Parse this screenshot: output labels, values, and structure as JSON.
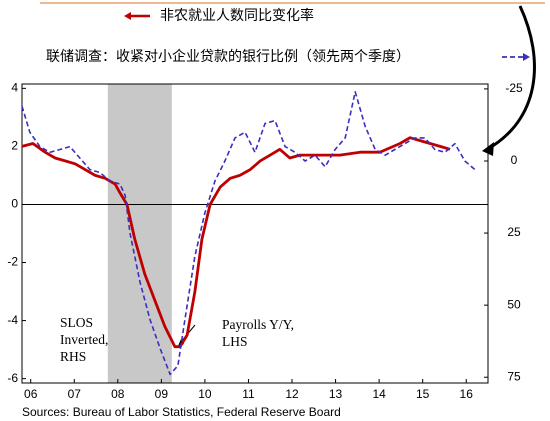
{
  "chart_data": {
    "type": "line",
    "legend": [
      "非农就业人数同比变化率",
      "联储调查：收紧对小企业贷款的银行比例（领先两个季度）"
    ],
    "series": [
      {
        "name": "非农就业人数同比变化率",
        "color": "#c00000",
        "axis": "y",
        "x": [
          5.8,
          6.05,
          6.33,
          6.56,
          6.79,
          7.02,
          7.25,
          7.48,
          7.71,
          7.94,
          8.05,
          8.21,
          8.39,
          8.62,
          8.85,
          9.08,
          9.31,
          9.43,
          9.59,
          9.77,
          9.93,
          10.12,
          10.35,
          10.58,
          10.8,
          11.04,
          11.27,
          11.5,
          11.72,
          11.95,
          12.18,
          12.64,
          13.1,
          13.56,
          14.02,
          14.48,
          14.71,
          14.94,
          15.17,
          15.4,
          15.63
        ],
        "values": [
          2.0,
          2.1,
          1.8,
          1.6,
          1.5,
          1.4,
          1.2,
          1.0,
          0.9,
          0.7,
          0.4,
          0.0,
          -1.2,
          -2.4,
          -3.3,
          -4.2,
          -4.9,
          -4.9,
          -4.5,
          -3.0,
          -1.2,
          0.0,
          0.6,
          0.9,
          1.0,
          1.2,
          1.5,
          1.7,
          1.9,
          1.6,
          1.7,
          1.7,
          1.7,
          1.8,
          1.8,
          2.1,
          2.3,
          2.2,
          2.1,
          2.0,
          1.9
        ]
      },
      {
        "name": "联储调查：收紧对小企业贷款的银行比例（领先两个季度）",
        "color": "#3a2fc0",
        "axis": "y2",
        "dashed": true,
        "x": [
          5.8,
          5.98,
          6.21,
          6.44,
          6.67,
          6.9,
          7.13,
          7.36,
          7.59,
          7.82,
          8.05,
          8.17,
          8.28,
          8.51,
          8.74,
          8.97,
          9.2,
          9.38,
          9.54,
          9.77,
          10.0,
          10.23,
          10.46,
          10.69,
          10.92,
          11.15,
          11.38,
          11.61,
          11.84,
          12.07,
          12.3,
          12.53,
          12.76,
          12.99,
          13.22,
          13.45,
          13.68,
          13.91,
          14.14,
          14.36,
          14.59,
          14.82,
          15.05,
          15.28,
          15.51,
          15.74,
          15.97,
          16.2
        ],
        "values": [
          -19,
          -10,
          -5,
          -3,
          -4,
          -5,
          -1,
          3,
          4,
          7,
          8,
          12,
          25,
          42,
          55,
          65,
          74,
          71,
          55,
          33,
          18,
          7,
          0,
          -8,
          -10,
          -3,
          -13,
          -14,
          -5,
          -3,
          0,
          -2,
          2,
          -4,
          -8,
          -24,
          -12,
          -4,
          -2,
          -4,
          -6,
          -8,
          -8,
          -4,
          -3,
          -6,
          0,
          3
        ]
      }
    ],
    "xlim": [
      5.8,
      16.5
    ],
    "xticks": [
      {
        "value": 6,
        "label": "06"
      },
      {
        "value": 7,
        "label": "07"
      },
      {
        "value": 8,
        "label": "08"
      },
      {
        "value": 9,
        "label": "09"
      },
      10,
      11,
      12,
      13,
      14,
      15,
      16
    ],
    "ylim": [
      -6.15,
      4.15
    ],
    "yticks": [
      4,
      2,
      0,
      -2,
      -4,
      -6
    ],
    "y2lim": [
      -26.7,
      77
    ],
    "y2_inverted": true,
    "y2ticks": [
      -25,
      0,
      25,
      50,
      75
    ],
    "reference_line": 0,
    "shaded_region": [
      7.77,
      9.24
    ],
    "annotations": [
      {
        "lines": [
          "SLOS",
          "Inverted,",
          "RHS"
        ]
      },
      {
        "lines": [
          "Payrolls Y/Y,",
          "LHS"
        ]
      }
    ],
    "source": "Sources:  Bureau of Labor Statistics, Federal Reserve Board"
  }
}
